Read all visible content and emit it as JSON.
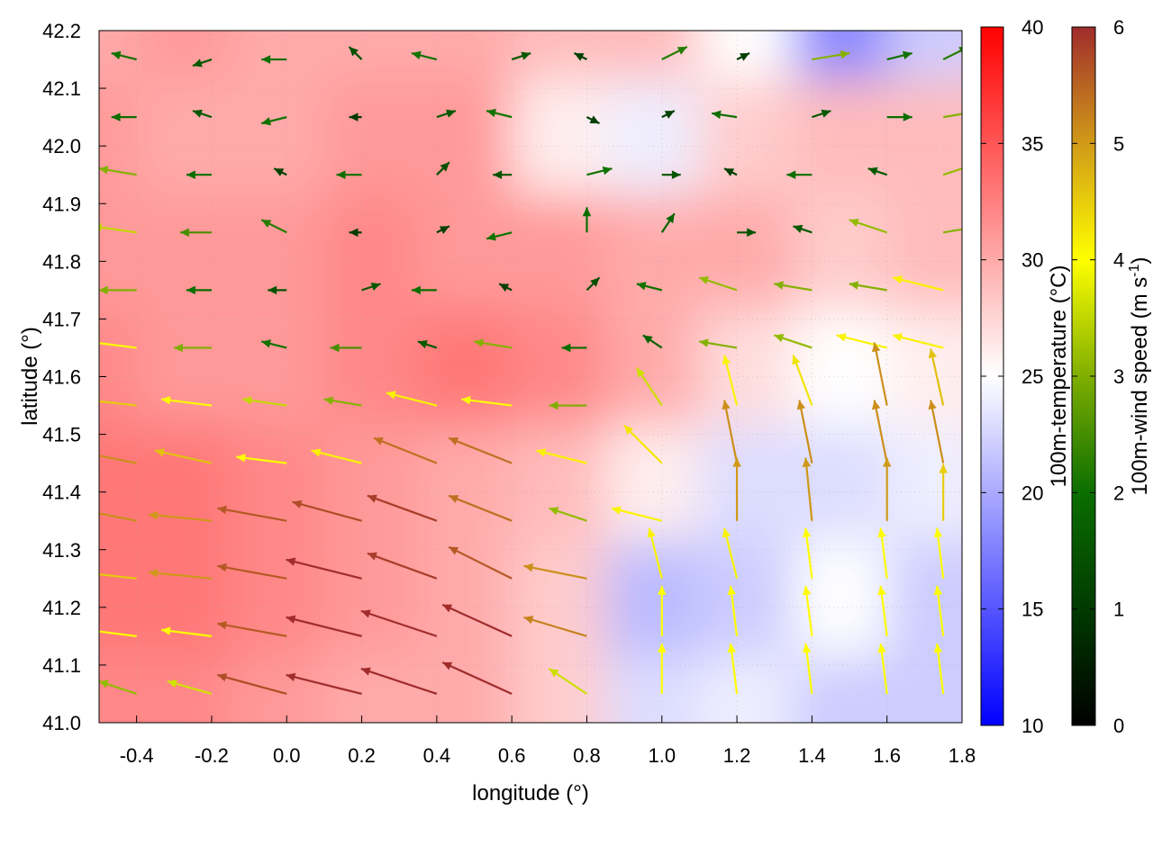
{
  "chart_data": {
    "type": "heatmap",
    "subtype": "vector-field-over-temperature-map",
    "xlabel": "longitude (°)",
    "ylabel": "latitude (°)",
    "xlim": [
      -0.5,
      1.8
    ],
    "ylim": [
      41.0,
      42.2
    ],
    "xticks": [
      "-0.4",
      "-0.2",
      "0.0",
      "0.2",
      "0.4",
      "0.6",
      "0.8",
      "1.0",
      "1.2",
      "1.4",
      "1.6",
      "1.8"
    ],
    "yticks": [
      "41.0",
      "41.1",
      "41.2",
      "41.3",
      "41.4",
      "41.5",
      "41.6",
      "41.7",
      "41.8",
      "41.9",
      "42.0",
      "42.1",
      "42.2"
    ],
    "grid": true,
    "temperature": {
      "label": "100m-temperature (°C)",
      "range": [
        10,
        40
      ],
      "ticks": [
        "10",
        "15",
        "20",
        "25",
        "30",
        "35",
        "40"
      ],
      "colors": {
        "low": "#0000ff",
        "mid": "#ffffff",
        "high": "#ff0000"
      },
      "lon": [
        -0.5,
        -0.25,
        0,
        0.25,
        0.5,
        0.75,
        1.0,
        1.25,
        1.5,
        1.75
      ],
      "lat": [
        42.2,
        42.0,
        41.8,
        41.6,
        41.4,
        41.2,
        41.0
      ],
      "values": [
        [
          30,
          31,
          30,
          30,
          30,
          29,
          29,
          25,
          18,
          22
        ],
        [
          31,
          30,
          30,
          31,
          31,
          26,
          24,
          28,
          29,
          29
        ],
        [
          31,
          31,
          31,
          32,
          31,
          31,
          30,
          30,
          28,
          29
        ],
        [
          32,
          31,
          31,
          32,
          33,
          32,
          30,
          27,
          25,
          26
        ],
        [
          33,
          33,
          32,
          31,
          30,
          29,
          26,
          23,
          23,
          24
        ],
        [
          33,
          33,
          32,
          31,
          30,
          28,
          21,
          22,
          25,
          22
        ],
        [
          32,
          32,
          31,
          30,
          30,
          28,
          23,
          24,
          22,
          22
        ]
      ]
    },
    "wind": {
      "label": "100m-wind speed (m s",
      "label_sup": "-1",
      "label_end": ")",
      "range": [
        0,
        6
      ],
      "ticks": [
        "0",
        "1",
        "2",
        "3",
        "4",
        "5",
        "6"
      ],
      "colors": [
        "#000000",
        "#003a00",
        "#0b6e00",
        "#7fae00",
        "#ffff00",
        "#d09a18",
        "#a02c2c"
      ],
      "lon": [
        -0.4,
        -0.2,
        0,
        0.2,
        0.4,
        0.6,
        0.8,
        1.0,
        1.2,
        1.4,
        1.6,
        1.75
      ],
      "lat": [
        42.15,
        42.05,
        41.95,
        41.85,
        41.75,
        41.65,
        41.55,
        41.45,
        41.35,
        41.25,
        41.15,
        41.05
      ],
      "uv": [
        [
          [
            -2,
            0.5
          ],
          [
            -1.5,
            -0.5
          ],
          [
            -2,
            0
          ],
          [
            -1,
            1
          ],
          [
            -2,
            0.5
          ],
          [
            1.5,
            0.5
          ],
          [
            -1,
            0.5
          ],
          [
            2,
            1
          ],
          [
            1,
            0.5
          ],
          [
            3,
            0.5
          ],
          [
            2,
            0.5
          ],
          [
            2,
            1
          ]
        ],
        [
          [
            -2,
            0
          ],
          [
            -1.5,
            0.5
          ],
          [
            -2,
            -0.5
          ],
          [
            -1,
            0
          ],
          [
            1.5,
            0.5
          ],
          [
            -2,
            0.5
          ],
          [
            1,
            -0.5
          ],
          [
            1,
            0.5
          ],
          [
            -2,
            0.3
          ],
          [
            1.5,
            0.5
          ],
          [
            2,
            0
          ],
          [
            3,
            0.5
          ]
        ],
        [
          [
            -3,
            0.5
          ],
          [
            -2,
            0
          ],
          [
            -1,
            0.5
          ],
          [
            -2,
            0
          ],
          [
            1,
            1
          ],
          [
            -1.5,
            0
          ],
          [
            2,
            0.5
          ],
          [
            1.5,
            0
          ],
          [
            -1,
            0.5
          ],
          [
            -2,
            0
          ],
          [
            -1.5,
            0.5
          ],
          [
            3,
            1
          ]
        ],
        [
          [
            -3.5,
            0.5
          ],
          [
            -2.5,
            0
          ],
          [
            -2,
            1
          ],
          [
            -1,
            0
          ],
          [
            1,
            0.5
          ],
          [
            -2,
            -0.5
          ],
          [
            0,
            2
          ],
          [
            1,
            1.5
          ],
          [
            1.5,
            0
          ],
          [
            -1.5,
            0.5
          ],
          [
            -3,
            1
          ],
          [
            3,
            0.5
          ]
        ],
        [
          [
            -3,
            0
          ],
          [
            -2,
            0
          ],
          [
            -1.5,
            0
          ],
          [
            1.5,
            0.5
          ],
          [
            -2,
            0
          ],
          [
            -1,
            0.5
          ],
          [
            1,
            1
          ],
          [
            -2,
            0.5
          ],
          [
            -3,
            1
          ],
          [
            -3,
            0.5
          ],
          [
            -3,
            0.5
          ],
          [
            -4,
            1
          ]
        ],
        [
          [
            -4,
            0.5
          ],
          [
            -3,
            0
          ],
          [
            -2,
            0.5
          ],
          [
            -2.5,
            0
          ],
          [
            -1.5,
            0.5
          ],
          [
            -3,
            0.5
          ],
          [
            -2,
            0
          ],
          [
            -1.5,
            1
          ],
          [
            -3,
            0.5
          ],
          [
            -3,
            1
          ],
          [
            -4,
            1
          ],
          [
            -4,
            1
          ]
        ],
        [
          [
            -4.5,
            0.5
          ],
          [
            -4,
            0.5
          ],
          [
            -3.5,
            0.5
          ],
          [
            -3,
            0.5
          ],
          [
            -4,
            1
          ],
          [
            -4,
            0.5
          ],
          [
            -3,
            0
          ],
          [
            -2,
            3
          ],
          [
            -1,
            4
          ],
          [
            -1.5,
            4
          ],
          [
            -1,
            5
          ],
          [
            -1,
            4.5
          ]
        ],
        [
          [
            -5,
            1
          ],
          [
            -4.5,
            1
          ],
          [
            -4,
            0.5
          ],
          [
            -4,
            1
          ],
          [
            -5,
            2
          ],
          [
            -5,
            2
          ],
          [
            -4,
            1
          ],
          [
            -3,
            3
          ],
          [
            -1,
            5
          ],
          [
            -1,
            5
          ],
          [
            -1,
            5
          ],
          [
            -1,
            5
          ]
        ],
        [
          [
            -5,
            1
          ],
          [
            -5,
            0.5
          ],
          [
            -5.5,
            1
          ],
          [
            -5.5,
            1.5
          ],
          [
            -5.5,
            2
          ],
          [
            -5,
            2
          ],
          [
            -3,
            1
          ],
          [
            -4,
            1
          ],
          [
            0,
            5
          ],
          [
            -0.5,
            5
          ],
          [
            0,
            5
          ],
          [
            0,
            4.5
          ]
        ],
        [
          [
            -4.5,
            0.5
          ],
          [
            -5,
            0.5
          ],
          [
            -5.5,
            1
          ],
          [
            -6,
            1.5
          ],
          [
            -5.5,
            2
          ],
          [
            -5,
            2.5
          ],
          [
            -5,
            1
          ],
          [
            -1,
            4
          ],
          [
            -1,
            4
          ],
          [
            -0.5,
            4
          ],
          [
            -0.5,
            4
          ],
          [
            -0.5,
            4
          ]
        ],
        [
          [
            -4,
            0.5
          ],
          [
            -4,
            0.5
          ],
          [
            -5.5,
            1
          ],
          [
            -6,
            1.5
          ],
          [
            -6,
            2
          ],
          [
            -5.5,
            2.5
          ],
          [
            -5,
            1.5
          ],
          [
            0,
            4
          ],
          [
            -0.5,
            4
          ],
          [
            -0.5,
            4
          ],
          [
            -0.5,
            4
          ],
          [
            -0.5,
            4
          ]
        ],
        [
          [
            -3,
            1
          ],
          [
            -3.5,
            1
          ],
          [
            -5.5,
            1.5
          ],
          [
            -6,
            1.5
          ],
          [
            -6,
            2
          ],
          [
            -5.5,
            2.5
          ],
          [
            -3,
            2
          ],
          [
            0,
            4
          ],
          [
            -0.5,
            4
          ],
          [
            -0.5,
            4
          ],
          [
            -0.5,
            4
          ],
          [
            -0.5,
            4
          ]
        ]
      ]
    }
  }
}
